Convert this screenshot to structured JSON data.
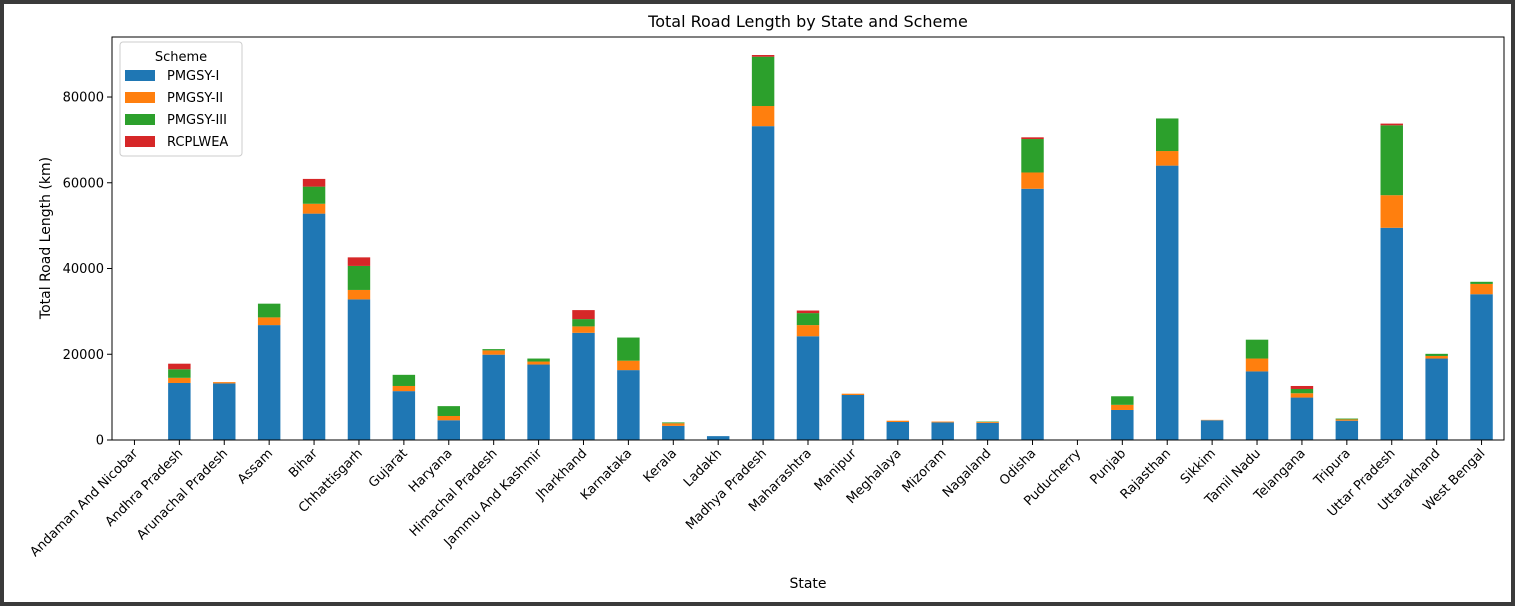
{
  "chart_data": {
    "type": "bar",
    "stacked": true,
    "title": "Total Road Length by State and Scheme",
    "xlabel": "State",
    "ylabel": "Total Road Length (km)",
    "ylim": [
      0,
      94000
    ],
    "yticks": [
      0,
      20000,
      40000,
      60000,
      80000
    ],
    "grid": false,
    "legend": {
      "title": "Scheme",
      "placement": "top-left"
    },
    "categories": [
      "Andaman And Nicobar",
      "Andhra Pradesh",
      "Arunachal Pradesh",
      "Assam",
      "Bihar",
      "Chhattisgarh",
      "Gujarat",
      "Haryana",
      "Himachal Pradesh",
      "Jammu And Kashmir",
      "Jharkhand",
      "Karnataka",
      "Kerala",
      "Ladakh",
      "Madhya Pradesh",
      "Maharashtra",
      "Manipur",
      "Meghalaya",
      "Mizoram",
      "Nagaland",
      "Odisha",
      "Puducherry",
      "Punjab",
      "Rajasthan",
      "Sikkim",
      "Tamil Nadu",
      "Telangana",
      "Tripura",
      "Uttar Pradesh",
      "Uttarakhand",
      "West Bengal"
    ],
    "series": [
      {
        "name": "PMGSY-I",
        "color": "#1f77b4",
        "values": [
          0,
          13300,
          13200,
          26800,
          52800,
          32800,
          11400,
          4600,
          19900,
          17600,
          25000,
          16300,
          3300,
          900,
          73200,
          24200,
          10500,
          4200,
          4100,
          4000,
          58600,
          0,
          7000,
          64000,
          4600,
          16000,
          9900,
          4500,
          49500,
          19000,
          34000
        ]
      },
      {
        "name": "PMGSY-II",
        "color": "#ff7f0e",
        "values": [
          0,
          1200,
          300,
          1800,
          2300,
          2200,
          1200,
          1000,
          1000,
          700,
          1500,
          2200,
          600,
          0,
          4700,
          2600,
          300,
          300,
          200,
          200,
          3800,
          0,
          1200,
          3400,
          100,
          3000,
          1000,
          300,
          7600,
          600,
          2400
        ]
      },
      {
        "name": "PMGSY-III",
        "color": "#2ca02c",
        "values": [
          0,
          2000,
          0,
          3200,
          4000,
          5600,
          2600,
          2300,
          300,
          700,
          1700,
          5400,
          200,
          0,
          11500,
          2800,
          0,
          0,
          0,
          100,
          7800,
          0,
          2000,
          7600,
          0,
          4400,
          1000,
          200,
          16300,
          500,
          500
        ]
      },
      {
        "name": "RCPLWEA",
        "color": "#d62728",
        "values": [
          0,
          1300,
          0,
          0,
          1800,
          2000,
          0,
          0,
          0,
          0,
          2100,
          0,
          0,
          0,
          400,
          600,
          0,
          0,
          0,
          0,
          400,
          0,
          0,
          0,
          0,
          0,
          700,
          0,
          400,
          0,
          0
        ]
      }
    ]
  }
}
